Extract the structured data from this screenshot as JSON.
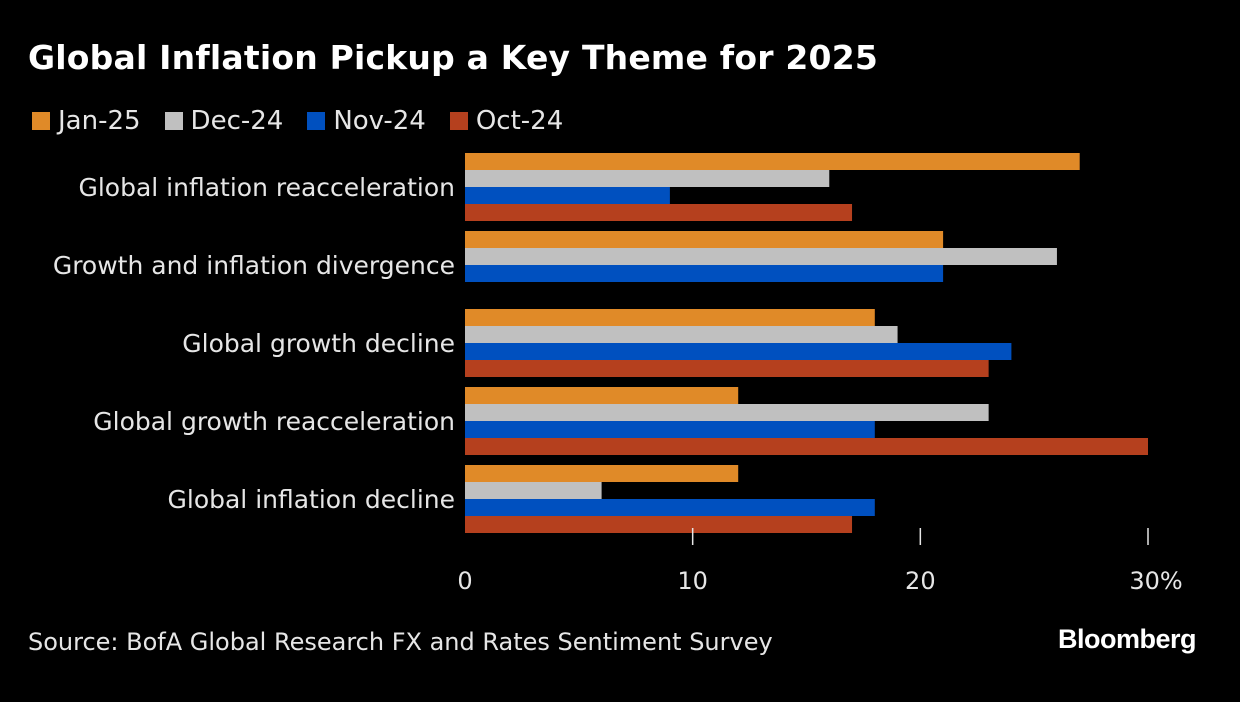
{
  "chart_data": {
    "type": "bar",
    "orientation": "horizontal",
    "title": "Global Inflation Pickup a Key Theme for 2025",
    "categories": [
      "Global inflation reacceleration",
      "Growth and inflation divergence",
      "Global growth decline",
      "Global growth reacceleration",
      "Global inflation decline"
    ],
    "series": [
      {
        "name": "Jan-25",
        "color": "#e08a28",
        "values": [
          27,
          21,
          18,
          12,
          12
        ]
      },
      {
        "name": "Dec-24",
        "color": "#c0c0c0",
        "values": [
          16,
          26,
          19,
          23,
          6
        ]
      },
      {
        "name": "Nov-24",
        "color": "#0050bf",
        "values": [
          9,
          21,
          24,
          18,
          18
        ]
      },
      {
        "name": "Oct-24",
        "color": "#b5401e",
        "values": [
          17,
          0,
          23,
          30,
          17
        ]
      }
    ],
    "xlabel": "",
    "ylabel": "",
    "xlim": [
      0,
      30
    ],
    "xticks": [
      0,
      10,
      20,
      30
    ],
    "xtick_labels": [
      "0",
      "10",
      "20",
      "30%"
    ],
    "grid": false,
    "legend_position": "top-left",
    "source": "Source: BofA Global Research FX and Rates Sentiment Survey",
    "brand": "Bloomberg"
  }
}
